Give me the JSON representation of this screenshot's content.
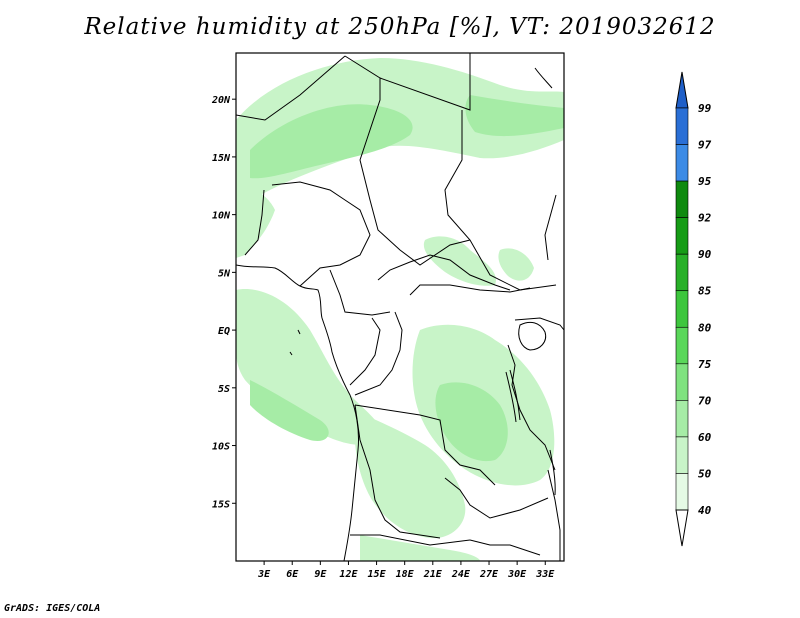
{
  "title": "Relative humidity at 250hPa [%], VT: 2019032612",
  "credit": "GrADS: IGES/COLA",
  "map": {
    "lon_range": [
      0,
      35
    ],
    "lat_range": [
      -20,
      24
    ],
    "lat_ticks": [
      {
        "value": 20,
        "label": "20N"
      },
      {
        "value": 15,
        "label": "15N"
      },
      {
        "value": 10,
        "label": "10N"
      },
      {
        "value": 5,
        "label": "5N"
      },
      {
        "value": 0,
        "label": "EQ"
      },
      {
        "value": -5,
        "label": "5S"
      },
      {
        "value": -10,
        "label": "10S"
      },
      {
        "value": -15,
        "label": "15S"
      }
    ],
    "lon_ticks": [
      {
        "value": 3,
        "label": "3E"
      },
      {
        "value": 6,
        "label": "6E"
      },
      {
        "value": 9,
        "label": "9E"
      },
      {
        "value": 12,
        "label": "12E"
      },
      {
        "value": 15,
        "label": "15E"
      },
      {
        "value": 18,
        "label": "18E"
      },
      {
        "value": 21,
        "label": "21E"
      },
      {
        "value": 24,
        "label": "24E"
      },
      {
        "value": 27,
        "label": "27E"
      },
      {
        "value": 30,
        "label": "30E"
      },
      {
        "value": 33,
        "label": "33E"
      }
    ]
  },
  "colorbar": {
    "levels": [
      {
        "label": "99",
        "color": "#2a6fd6"
      },
      {
        "label": "97",
        "color": "#3c8be6"
      },
      {
        "label": "95",
        "color": "#0f8a0f"
      },
      {
        "label": "92",
        "color": "#169c16"
      },
      {
        "label": "90",
        "color": "#28b028"
      },
      {
        "label": "85",
        "color": "#3dc63d"
      },
      {
        "label": "80",
        "color": "#5ad75a"
      },
      {
        "label": "75",
        "color": "#7fe27f"
      },
      {
        "label": "70",
        "color": "#a6eca6"
      },
      {
        "label": "60",
        "color": "#c8f4c8"
      },
      {
        "label": "50",
        "color": "#e5fae5"
      },
      {
        "label": "40",
        "color": "#ffffff"
      }
    ],
    "top_color": "#1f5fc8",
    "bottom_color": "#ffffff"
  },
  "colors": {
    "light": "#c8f4c8",
    "mid": "#a6eca6",
    "border": "#000000"
  }
}
